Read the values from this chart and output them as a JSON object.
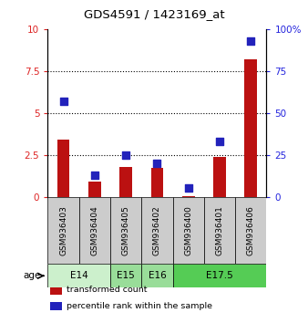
{
  "title": "GDS4591 / 1423169_at",
  "samples": [
    "GSM936403",
    "GSM936404",
    "GSM936405",
    "GSM936402",
    "GSM936400",
    "GSM936401",
    "GSM936406"
  ],
  "transformed_count": [
    3.4,
    0.9,
    1.8,
    1.7,
    0.05,
    2.4,
    8.2
  ],
  "percentile_rank": [
    57,
    13,
    25,
    20,
    5,
    33,
    93
  ],
  "age_groups": [
    {
      "label": "E14",
      "samples": [
        0,
        1
      ],
      "color": "#ccf0cc"
    },
    {
      "label": "E15",
      "samples": [
        2
      ],
      "color": "#99dd99"
    },
    {
      "label": "E16",
      "samples": [
        3
      ],
      "color": "#99dd99"
    },
    {
      "label": "E17.5",
      "samples": [
        4,
        5,
        6
      ],
      "color": "#55cc55"
    }
  ],
  "ylim_left": [
    0,
    10
  ],
  "ylim_right": [
    0,
    100
  ],
  "yticks_left": [
    0,
    2.5,
    5,
    7.5,
    10
  ],
  "ytick_labels_left": [
    "0",
    "2.5",
    "5",
    "7.5",
    "10"
  ],
  "yticks_right": [
    0,
    25,
    50,
    75,
    100
  ],
  "ytick_labels_right": [
    "0",
    "25",
    "50",
    "75",
    "100%"
  ],
  "bar_color": "#bb1111",
  "dot_color": "#2222bb",
  "bar_width": 0.4,
  "dot_size": 30,
  "grid_yticks": [
    2.5,
    5.0,
    7.5
  ],
  "background_color": "#ffffff",
  "plot_bg_color": "#ffffff",
  "sample_box_color": "#cccccc",
  "legend_items": [
    {
      "label": "transformed count",
      "color": "#bb1111"
    },
    {
      "label": "percentile rank within the sample",
      "color": "#2222bb"
    }
  ]
}
